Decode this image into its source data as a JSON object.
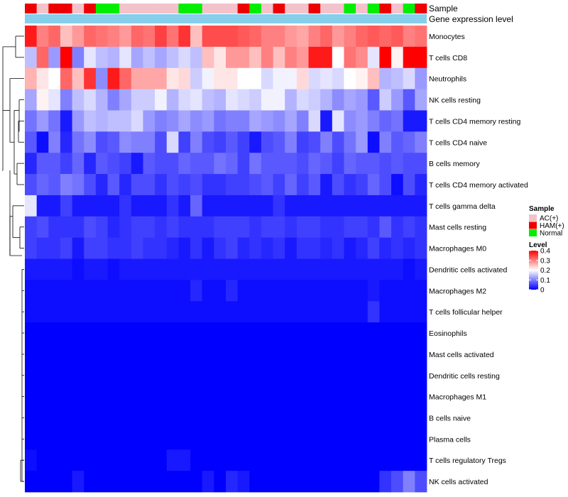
{
  "chart_data": {
    "type": "heatmap",
    "top_annotations": [
      "Sample",
      "Gene expression level"
    ],
    "row_labels": [
      "Monocytes",
      "T cells CD8",
      "Neutrophils",
      "NK cells resting",
      "T cells CD4 memory resting",
      "T cells CD4 naive",
      "B cells memory",
      "T cells CD4 memory activated",
      "T cells gamma delta",
      "Mast cells resting",
      "Macrophages M0",
      "Dendritic cells activated",
      "Macrophages M2",
      "T cells follicular helper",
      "Eosinophils",
      "Mast cells activated",
      "Dendritic cells resting",
      "Macrophages M1",
      "B cells naive",
      "Plasma cells",
      "T cells regulatory  Tregs",
      "NK cells activated"
    ],
    "sample_groups": [
      "HAM(+)",
      "AC(+)",
      "HAM(+)",
      "HAM(+)",
      "AC(+)",
      "HAM(+)",
      "Normal",
      "Normal",
      "AC(+)",
      "AC(+)",
      "AC(+)",
      "AC(+)",
      "AC(+)",
      "Normal",
      "Normal",
      "AC(+)",
      "AC(+)",
      "AC(+)",
      "HAM(+)",
      "Normal",
      "AC(+)",
      "HAM(+)",
      "AC(+)",
      "AC(+)",
      "HAM(+)",
      "AC(+)",
      "AC(+)",
      "Normal",
      "AC(+)",
      "Normal",
      "HAM(+)",
      "AC(+)",
      "Normal",
      "HAM(+)"
    ],
    "sample_colors": {
      "AC(+)": "#f4c2cb",
      "HAM(+)": "#ee0000",
      "Normal": "#00ee00"
    },
    "expression_bar_color": "#87ceeb",
    "legend_sample": {
      "title": "Sample",
      "entries": [
        "AC(+)",
        "HAM(+)",
        "Normal"
      ]
    },
    "legend_level": {
      "title": "Level",
      "ticks": [
        "0.4",
        "0.3",
        "0.2",
        "0.1",
        "0"
      ],
      "min": 0,
      "max": 0.4
    },
    "color_scale": {
      "low": "#0000ff",
      "mid": "#ffffff",
      "high": "#ff0000",
      "mid_value": 0.2
    },
    "values": [
      [
        0.38,
        0.3,
        0.32,
        0.25,
        0.28,
        0.32,
        0.31,
        0.3,
        0.28,
        0.32,
        0.31,
        0.35,
        0.31,
        0.36,
        0.25,
        0.34,
        0.34,
        0.34,
        0.33,
        0.32,
        0.3,
        0.3,
        0.28,
        0.27,
        0.3,
        0.32,
        0.28,
        0.3,
        0.32,
        0.33,
        0.32,
        0.33,
        0.3,
        0.31
      ],
      [
        0.15,
        0.32,
        0.12,
        0.4,
        0.1,
        0.18,
        0.15,
        0.14,
        0.18,
        0.13,
        0.15,
        0.13,
        0.15,
        0.17,
        0.15,
        0.25,
        0.22,
        0.28,
        0.28,
        0.25,
        0.3,
        0.25,
        0.3,
        0.28,
        0.38,
        0.38,
        0.2,
        0.31,
        0.29,
        0.18,
        0.4,
        0.21,
        0.4,
        0.4
      ],
      [
        0.26,
        0.22,
        0.2,
        0.32,
        0.25,
        0.36,
        0.11,
        0.38,
        0.32,
        0.27,
        0.27,
        0.27,
        0.22,
        0.23,
        0.16,
        0.19,
        0.22,
        0.22,
        0.2,
        0.2,
        0.17,
        0.19,
        0.19,
        0.23,
        0.17,
        0.18,
        0.17,
        0.2,
        0.21,
        0.25,
        0.14,
        0.15,
        0.17,
        0.12
      ],
      [
        0.13,
        0.21,
        0.18,
        0.1,
        0.15,
        0.17,
        0.14,
        0.1,
        0.13,
        0.16,
        0.16,
        0.19,
        0.14,
        0.17,
        0.18,
        0.15,
        0.14,
        0.18,
        0.17,
        0.16,
        0.19,
        0.19,
        0.14,
        0.17,
        0.16,
        0.14,
        0.11,
        0.13,
        0.12,
        0.07,
        0.16,
        0.12,
        0.07,
        0.13
      ],
      [
        0.09,
        0.12,
        0.09,
        0.02,
        0.12,
        0.15,
        0.14,
        0.15,
        0.15,
        0.17,
        0.12,
        0.1,
        0.11,
        0.13,
        0.11,
        0.12,
        0.09,
        0.1,
        0.1,
        0.13,
        0.12,
        0.11,
        0.13,
        0.1,
        0.17,
        0.02,
        0.18,
        0.11,
        0.12,
        0.1,
        0.08,
        0.09,
        0.02,
        0.02
      ],
      [
        0.07,
        0.01,
        0.1,
        0.03,
        0.09,
        0.11,
        0.06,
        0.07,
        0.11,
        0.1,
        0.1,
        0.06,
        0.17,
        0.05,
        0.1,
        0.06,
        0.05,
        0.07,
        0.05,
        0.02,
        0.06,
        0.07,
        0.1,
        0.05,
        0.06,
        0.1,
        0.06,
        0.09,
        0.12,
        0.01,
        0.1,
        0.07,
        0.08,
        0.1
      ],
      [
        0.03,
        0.07,
        0.07,
        0.05,
        0.08,
        0.03,
        0.07,
        0.06,
        0.05,
        0.02,
        0.07,
        0.06,
        0.06,
        0.08,
        0.07,
        0.07,
        0.09,
        0.08,
        0.05,
        0.09,
        0.07,
        0.07,
        0.07,
        0.06,
        0.08,
        0.07,
        0.05,
        0.08,
        0.07,
        0.07,
        0.06,
        0.07,
        0.06,
        0.06
      ],
      [
        0.06,
        0.08,
        0.07,
        0.1,
        0.09,
        0.06,
        0.03,
        0.07,
        0.03,
        0.06,
        0.06,
        0.04,
        0.06,
        0.05,
        0.06,
        0.04,
        0.04,
        0.05,
        0.05,
        0.06,
        0.07,
        0.05,
        0.08,
        0.05,
        0.07,
        0.02,
        0.06,
        0.04,
        0.05,
        0.08,
        0.06,
        0.01,
        0.06,
        0.03
      ],
      [
        0.18,
        0.02,
        0.02,
        0.05,
        0.02,
        0.02,
        0.02,
        0.02,
        0.04,
        0.02,
        0.02,
        0.02,
        0.04,
        0.02,
        0.08,
        0.02,
        0.02,
        0.02,
        0.02,
        0.02,
        0.02,
        0.04,
        0.02,
        0.02,
        0.02,
        0.02,
        0.02,
        0.02,
        0.02,
        0.02,
        0.02,
        0.02,
        0.02,
        0.02
      ],
      [
        0.05,
        0.06,
        0.04,
        0.04,
        0.04,
        0.06,
        0.05,
        0.03,
        0.04,
        0.05,
        0.05,
        0.04,
        0.05,
        0.04,
        0.04,
        0.04,
        0.05,
        0.05,
        0.05,
        0.04,
        0.05,
        0.05,
        0.04,
        0.05,
        0.05,
        0.04,
        0.04,
        0.05,
        0.05,
        0.04,
        0.07,
        0.04,
        0.05,
        0.04
      ],
      [
        0.05,
        0.04,
        0.04,
        0.05,
        0.02,
        0.05,
        0.05,
        0.04,
        0.04,
        0.05,
        0.04,
        0.04,
        0.03,
        0.02,
        0.04,
        0.02,
        0.04,
        0.05,
        0.03,
        0.04,
        0.03,
        0.04,
        0.02,
        0.04,
        0.04,
        0.03,
        0.04,
        0.02,
        0.03,
        0.05,
        0.03,
        0.04,
        0.03,
        0.04
      ],
      [
        0.02,
        0.02,
        0.02,
        0.02,
        0.01,
        0.02,
        0.02,
        0.01,
        0.02,
        0.02,
        0.02,
        0.02,
        0.02,
        0.02,
        0.02,
        0.02,
        0.02,
        0.02,
        0.02,
        0.02,
        0.02,
        0.02,
        0.02,
        0.02,
        0.02,
        0.02,
        0.02,
        0.02,
        0.02,
        0.02,
        0.02,
        0.02,
        0.01,
        0.02
      ],
      [
        0.01,
        0.01,
        0.01,
        0.01,
        0.01,
        0.01,
        0.01,
        0.01,
        0.01,
        0.01,
        0.01,
        0.01,
        0.01,
        0.01,
        0.03,
        0.01,
        0.01,
        0.03,
        0.01,
        0.01,
        0.01,
        0.01,
        0.01,
        0.01,
        0.01,
        0.01,
        0.01,
        0.01,
        0.01,
        0.02,
        0.01,
        0.01,
        0.01,
        0.01
      ],
      [
        0.01,
        0.01,
        0.01,
        0.01,
        0.01,
        0.01,
        0.01,
        0.01,
        0.01,
        0.01,
        0.01,
        0.01,
        0.01,
        0.01,
        0.01,
        0.01,
        0.01,
        0.01,
        0.01,
        0.01,
        0.01,
        0.01,
        0.01,
        0.01,
        0.01,
        0.01,
        0.01,
        0.01,
        0.01,
        0.04,
        0.01,
        0.01,
        0.01,
        0.01
      ],
      [
        0.0,
        0.0,
        0.0,
        0.0,
        0.0,
        0.0,
        0.0,
        0.0,
        0.0,
        0.0,
        0.0,
        0.0,
        0.0,
        0.0,
        0.0,
        0.0,
        0.0,
        0.0,
        0.0,
        0.0,
        0.0,
        0.0,
        0.0,
        0.0,
        0.0,
        0.0,
        0.0,
        0.0,
        0.0,
        0.0,
        0.0,
        0.0,
        0.0,
        0.0
      ],
      [
        0.0,
        0.0,
        0.0,
        0.0,
        0.0,
        0.0,
        0.0,
        0.0,
        0.0,
        0.0,
        0.0,
        0.0,
        0.0,
        0.0,
        0.0,
        0.0,
        0.0,
        0.0,
        0.0,
        0.0,
        0.0,
        0.0,
        0.0,
        0.0,
        0.0,
        0.0,
        0.0,
        0.0,
        0.0,
        0.0,
        0.0,
        0.0,
        0.0,
        0.0
      ],
      [
        0.0,
        0.0,
        0.0,
        0.0,
        0.0,
        0.0,
        0.0,
        0.0,
        0.0,
        0.0,
        0.0,
        0.0,
        0.0,
        0.0,
        0.0,
        0.0,
        0.0,
        0.0,
        0.0,
        0.0,
        0.0,
        0.0,
        0.0,
        0.0,
        0.0,
        0.0,
        0.0,
        0.0,
        0.0,
        0.0,
        0.0,
        0.0,
        0.0,
        0.0
      ],
      [
        0.0,
        0.0,
        0.0,
        0.0,
        0.0,
        0.0,
        0.0,
        0.0,
        0.0,
        0.0,
        0.0,
        0.0,
        0.0,
        0.0,
        0.0,
        0.0,
        0.0,
        0.0,
        0.0,
        0.0,
        0.0,
        0.0,
        0.0,
        0.0,
        0.0,
        0.0,
        0.0,
        0.0,
        0.0,
        0.0,
        0.0,
        0.0,
        0.0,
        0.0
      ],
      [
        0.0,
        0.0,
        0.0,
        0.0,
        0.0,
        0.0,
        0.0,
        0.0,
        0.0,
        0.0,
        0.0,
        0.0,
        0.0,
        0.0,
        0.0,
        0.0,
        0.0,
        0.0,
        0.0,
        0.0,
        0.0,
        0.0,
        0.0,
        0.0,
        0.0,
        0.0,
        0.0,
        0.0,
        0.0,
        0.0,
        0.0,
        0.0,
        0.0,
        0.0
      ],
      [
        0.0,
        0.0,
        0.0,
        0.0,
        0.0,
        0.0,
        0.0,
        0.0,
        0.0,
        0.0,
        0.0,
        0.0,
        0.0,
        0.0,
        0.0,
        0.0,
        0.0,
        0.0,
        0.0,
        0.0,
        0.0,
        0.0,
        0.0,
        0.0,
        0.0,
        0.0,
        0.0,
        0.0,
        0.0,
        0.0,
        0.0,
        0.0,
        0.0,
        0.0
      ],
      [
        0.01,
        0.0,
        0.0,
        0.0,
        0.0,
        0.0,
        0.0,
        0.0,
        0.0,
        0.0,
        0.0,
        0.0,
        0.02,
        0.02,
        0.0,
        0.0,
        0.0,
        0.0,
        0.0,
        0.0,
        0.0,
        0.0,
        0.0,
        0.0,
        0.0,
        0.0,
        0.0,
        0.0,
        0.0,
        0.0,
        0.0,
        0.0,
        0.0,
        0.0
      ],
      [
        0.0,
        0.0,
        0.0,
        0.0,
        0.02,
        0.0,
        0.0,
        0.0,
        0.0,
        0.0,
        0.0,
        0.0,
        0.0,
        0.0,
        0.0,
        0.02,
        0.0,
        0.03,
        0.02,
        0.0,
        0.0,
        0.0,
        0.0,
        0.0,
        0.0,
        0.0,
        0.0,
        0.0,
        0.0,
        0.0,
        0.04,
        0.06,
        0.1,
        0.06
      ]
    ]
  }
}
